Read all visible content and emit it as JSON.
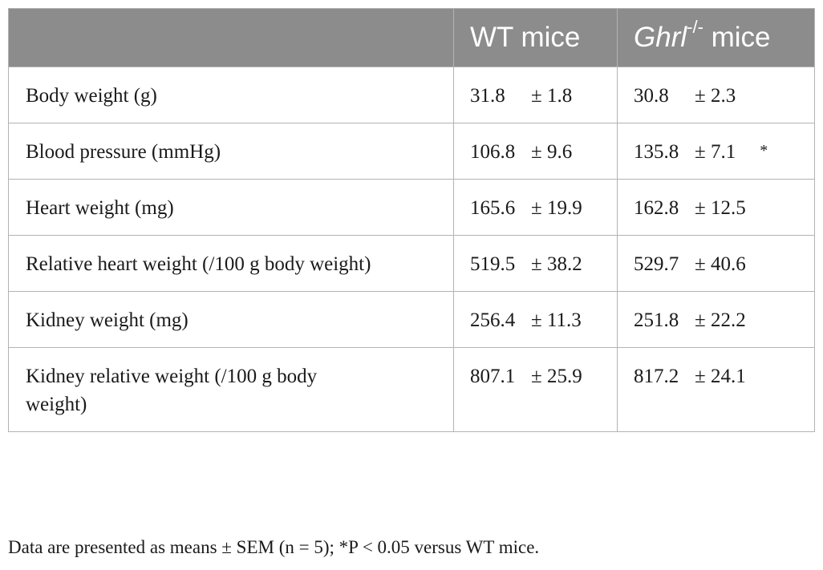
{
  "table": {
    "header": {
      "col1": "",
      "col2": "WT mice",
      "col3_italic": "Ghrl",
      "col3_sup": "-/-",
      "col3_rest": " mice"
    },
    "rows": [
      {
        "label": "Body weight (g)",
        "wt_mean": "31.8",
        "wt_sem": "± 1.8",
        "ko_mean": "30.8",
        "ko_sem": "± 2.3",
        "ko_sig": ""
      },
      {
        "label": "Blood pressure (mmHg)",
        "wt_mean": "106.8",
        "wt_sem": "± 9.6",
        "ko_mean": "135.8",
        "ko_sem": "± 7.1",
        "ko_sig": "*"
      },
      {
        "label": "Heart weight (mg)",
        "wt_mean": "165.6",
        "wt_sem": "± 19.9",
        "ko_mean": "162.8",
        "ko_sem": "± 12.5",
        "ko_sig": ""
      },
      {
        "label": "Relative heart weight (/100 g body weight)",
        "wt_mean": "519.5",
        "wt_sem": "± 38.2",
        "ko_mean": "529.7",
        "ko_sem": "± 40.6",
        "ko_sig": ""
      },
      {
        "label": "Kidney weight (mg)",
        "wt_mean": "256.4",
        "wt_sem": "± 11.3",
        "ko_mean": "251.8",
        "ko_sem": "± 22.2",
        "ko_sig": ""
      },
      {
        "label": "Kidney relative weight (/100 g body weight)",
        "wt_mean": "807.1",
        "wt_sem": "± 25.9",
        "ko_mean": "817.2",
        "ko_sem": "± 24.1",
        "ko_sig": ""
      }
    ]
  },
  "footnote": "Data are presented as means ± SEM (n = 5); *P < 0.05 versus WT mice."
}
